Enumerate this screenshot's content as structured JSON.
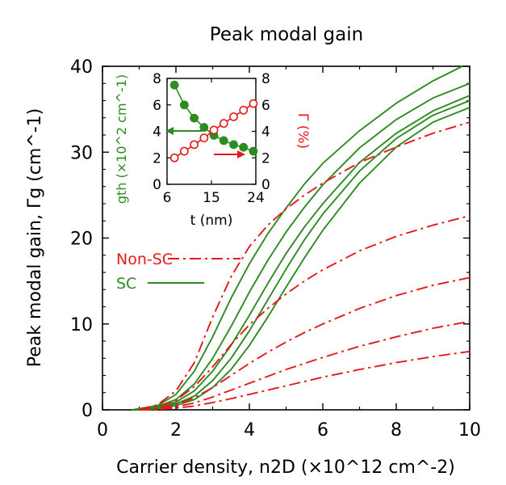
{
  "chart_data": [
    {
      "type": "line",
      "title": "Peak modal gain",
      "xlabel": "Carrier density, n2D (×10^12 cm^-2)",
      "ylabel": "Peak modal gain, Γg (cm^-1)",
      "xlim": [
        0,
        10
      ],
      "ylim": [
        0,
        40
      ],
      "xticks": [
        0,
        2,
        4,
        6,
        8,
        10
      ],
      "yticks": [
        0,
        10,
        20,
        30,
        40
      ],
      "grid": false,
      "legend": {
        "position": "middle-left",
        "entries": [
          {
            "label": "Non-SC",
            "color": "#e41a1c",
            "dash": "dashdot"
          },
          {
            "label": "SC",
            "color": "#2e8b22",
            "dash": "solid"
          }
        ]
      },
      "series": [
        {
          "group": "SC",
          "color": "#2e8b22",
          "dash": "solid",
          "x": [
            0.8,
            1.5,
            2,
            2.5,
            3,
            3.5,
            4,
            4.5,
            5,
            5.5,
            6,
            7,
            8,
            9,
            9.8
          ],
          "y": [
            0,
            0.5,
            1.8,
            4.5,
            8.5,
            13,
            17,
            20.5,
            23.5,
            26.3,
            28.7,
            32.5,
            35.7,
            38.3,
            40
          ]
        },
        {
          "group": "SC",
          "color": "#2e8b22",
          "dash": "solid",
          "x": [
            0.9,
            1.5,
            2,
            2.5,
            3,
            3.5,
            4,
            4.5,
            5,
            5.5,
            6,
            7,
            8,
            9,
            10
          ],
          "y": [
            0,
            0.4,
            1.2,
            3,
            6,
            9.7,
            13.7,
            17.4,
            20.7,
            23.6,
            26.2,
            30.5,
            33.8,
            36.3,
            38
          ]
        },
        {
          "group": "SC",
          "color": "#2e8b22",
          "dash": "solid",
          "x": [
            1,
            1.5,
            2,
            2.5,
            3,
            3.5,
            4,
            4.5,
            5,
            5.5,
            6,
            7,
            8,
            9,
            10
          ],
          "y": [
            0,
            0.3,
            0.9,
            2.2,
            4.5,
            7.5,
            11,
            14.7,
            18.2,
            21.3,
            24,
            28.8,
            32.2,
            34.8,
            36.6
          ]
        },
        {
          "group": "SC",
          "color": "#2e8b22",
          "dash": "solid",
          "x": [
            1,
            1.5,
            2,
            2.5,
            3,
            3.5,
            4,
            4.5,
            5,
            5.5,
            6,
            7,
            8,
            9,
            10
          ],
          "y": [
            0,
            0.2,
            0.7,
            1.6,
            3.4,
            6,
            9.2,
            12.8,
            16.4,
            19.8,
            22.8,
            27.8,
            31.6,
            34.3,
            36
          ]
        },
        {
          "group": "SC",
          "color": "#2e8b22",
          "dash": "solid",
          "x": [
            1.1,
            1.5,
            2,
            2.5,
            3,
            3.5,
            4,
            4.5,
            5,
            5.5,
            6,
            7,
            8,
            9,
            10
          ],
          "y": [
            0,
            0.15,
            0.5,
            1.2,
            2.6,
            4.7,
            7.5,
            10.8,
            14.3,
            17.7,
            20.9,
            26.4,
            30.6,
            33.5,
            35.2
          ]
        },
        {
          "group": "Non-SC",
          "color": "#e41a1c",
          "dash": "dashdot",
          "x": [
            1,
            1.5,
            2,
            2.5,
            3,
            3.5,
            4,
            4.5,
            5,
            5.5,
            6,
            7,
            8,
            9,
            10
          ],
          "y": [
            0,
            0.6,
            2.2,
            5.5,
            10.8,
            15.5,
            19,
            21.5,
            23.4,
            25,
            26.4,
            28.8,
            30.6,
            32.2,
            33.5
          ]
        },
        {
          "group": "Non-SC",
          "color": "#e41a1c",
          "dash": "dashdot",
          "x": [
            1,
            1.5,
            2,
            2.5,
            3,
            3.5,
            4,
            4.5,
            5,
            5.5,
            6,
            7,
            8,
            9,
            10
          ],
          "y": [
            0,
            0.3,
            1.1,
            2.7,
            5,
            7.6,
            9.9,
            11.8,
            13.5,
            15,
            16.3,
            18.5,
            20.2,
            21.5,
            22.6
          ]
        },
        {
          "group": "Non-SC",
          "color": "#e41a1c",
          "dash": "dashdot",
          "x": [
            1,
            1.5,
            2,
            2.5,
            3,
            3.5,
            4,
            4.5,
            5,
            5.5,
            6,
            7,
            8,
            9,
            10
          ],
          "y": [
            0,
            0.15,
            0.6,
            1.4,
            2.6,
            4,
            5.4,
            6.7,
            7.9,
            9,
            10,
            11.8,
            13.3,
            14.5,
            15.4
          ]
        },
        {
          "group": "Non-SC",
          "color": "#e41a1c",
          "dash": "dashdot",
          "x": [
            1,
            1.5,
            2,
            2.5,
            3,
            3.5,
            4,
            4.5,
            5,
            5.5,
            6,
            7,
            8,
            9,
            10
          ],
          "y": [
            0,
            0.08,
            0.35,
            0.8,
            1.5,
            2.3,
            3.1,
            3.9,
            4.7,
            5.4,
            6.1,
            7.4,
            8.5,
            9.5,
            10.3
          ]
        },
        {
          "group": "Non-SC",
          "color": "#e41a1c",
          "dash": "dashdot",
          "x": [
            1,
            1.5,
            2,
            2.5,
            3,
            3.5,
            4,
            4.5,
            5,
            5.5,
            6,
            7,
            8,
            9,
            10
          ],
          "y": [
            0,
            0.05,
            0.2,
            0.45,
            0.85,
            1.3,
            1.8,
            2.3,
            2.8,
            3.3,
            3.8,
            4.7,
            5.5,
            6.2,
            6.8
          ]
        }
      ]
    },
    {
      "type": "line",
      "title": "",
      "xlabel": "t (nm)",
      "ylabel_left": "gth (×10^2 cm^-1)",
      "ylabel_right": "Γ (%)",
      "xlim": [
        6,
        24
      ],
      "ylim_left": [
        0,
        8
      ],
      "ylim_right": [
        0,
        8
      ],
      "xticks": [
        6,
        15,
        24
      ],
      "yticks_left": [
        0,
        2,
        4,
        6,
        8
      ],
      "yticks_right": [
        0,
        2,
        4,
        6,
        8
      ],
      "grid": false,
      "series": [
        {
          "name": "gth",
          "axis": "left",
          "color": "#2e8b22",
          "marker": "filled-circle",
          "x": [
            7.5,
            9.5,
            11.5,
            13.5,
            15.5,
            17.5,
            19.5,
            21.5,
            23.5
          ],
          "y": [
            7.5,
            6.0,
            5.0,
            4.3,
            3.7,
            3.3,
            3.0,
            2.8,
            2.5
          ]
        },
        {
          "name": "Γ",
          "axis": "right",
          "color": "#e41a1c",
          "marker": "open-circle",
          "x": [
            7.5,
            9.5,
            11.5,
            13.5,
            15.5,
            17.5,
            19.5,
            21.5,
            23.5
          ],
          "y": [
            2.0,
            2.5,
            3.0,
            3.5,
            4.1,
            4.6,
            5.1,
            5.6,
            6.1
          ]
        }
      ]
    }
  ]
}
